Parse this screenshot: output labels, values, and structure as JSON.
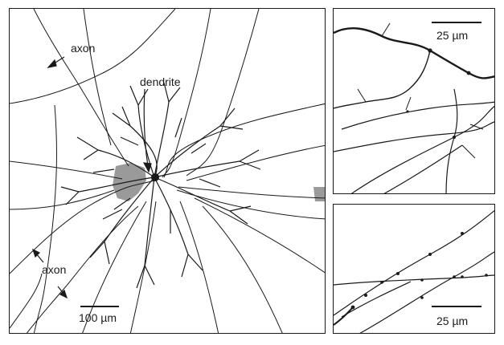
{
  "labels": {
    "axon_top": "axon",
    "axon_bottom": "axon",
    "dendrite": "dendrite"
  },
  "scale_bars": {
    "main": "100 µm",
    "top_right": "25 µm",
    "bottom_right": "25 µm"
  },
  "colors": {
    "ink": "#1a1a1a",
    "soma_shading": "#9a9a9a",
    "background": "#ffffff"
  }
}
